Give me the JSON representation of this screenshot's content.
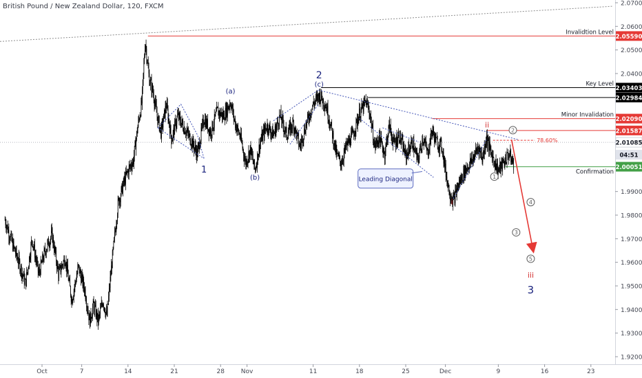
{
  "chart_title": "British Pound / New Zealand Dollar, 120, FXCM",
  "colors": {
    "candle": "#000000",
    "red_line": "#e53935",
    "black_line": "#000000",
    "green_line": "#43a047",
    "blue_label": "#1a237e",
    "dotted_blue": "#3f51b5",
    "red_label": "#d32f2f",
    "grey_label": "#616161",
    "axis_text": "#434651",
    "trendline": "#8c8c8c"
  },
  "chart_data": {
    "type": "candlestick",
    "ylim": [
      1.92,
      2.07
    ],
    "y_tick_labels": [
      "2.07000",
      "2.06000",
      "2.05000",
      "2.04000",
      "2.03000",
      "2.02000",
      "2.01000",
      "2.00000",
      "1.99000",
      "1.98000",
      "1.97000",
      "1.96000",
      "1.95000",
      "1.94000",
      "1.93000",
      "1.92000"
    ],
    "x_tick_labels": [
      {
        "label": "Oct",
        "day": 0
      },
      {
        "label": "7",
        "day": 6
      },
      {
        "label": "14",
        "day": 13
      },
      {
        "label": "21",
        "day": 20
      },
      {
        "label": "28",
        "day": 27
      },
      {
        "label": "Nov",
        "day": 31
      },
      {
        "label": "11",
        "day": 41
      },
      {
        "label": "18",
        "day": 48
      },
      {
        "label": "25",
        "day": 55
      },
      {
        "label": "Dec",
        "day": 61
      },
      {
        "label": "9",
        "day": 69
      },
      {
        "label": "16",
        "day": 76
      },
      {
        "label": "23",
        "day": 83
      }
    ],
    "price_path": [
      [
        -5.6,
        1.978
      ],
      [
        -4.5,
        1.968
      ],
      [
        -3.5,
        1.96
      ],
      [
        -2.5,
        1.951
      ],
      [
        -1.5,
        1.97
      ],
      [
        -0.5,
        1.955
      ],
      [
        0.5,
        1.965
      ],
      [
        1.5,
        1.972
      ],
      [
        2.5,
        1.955
      ],
      [
        3.5,
        1.962
      ],
      [
        4.5,
        1.944
      ],
      [
        5.5,
        1.958
      ],
      [
        6.5,
        1.948
      ],
      [
        7.2,
        1.935
      ],
      [
        7.8,
        1.942
      ],
      [
        8.5,
        1.935
      ],
      [
        9.2,
        1.944
      ],
      [
        9.8,
        1.937
      ],
      [
        10.5,
        1.958
      ],
      [
        11.5,
        1.985
      ],
      [
        12.5,
        1.995
      ],
      [
        13.2,
        2.0
      ],
      [
        13.8,
        2.003
      ],
      [
        14.5,
        2.018
      ],
      [
        15.1,
        2.028
      ],
      [
        15.6,
        2.054
      ],
      [
        16.2,
        2.038
      ],
      [
        16.8,
        2.032
      ],
      [
        17.4,
        2.022
      ],
      [
        18.0,
        2.015
      ],
      [
        18.8,
        2.027
      ],
      [
        19.6,
        2.012
      ],
      [
        20.5,
        2.022
      ],
      [
        21.5,
        2.017
      ],
      [
        22.5,
        2.012
      ],
      [
        23.5,
        2.006
      ],
      [
        24.5,
        2.021
      ],
      [
        25.5,
        2.015
      ],
      [
        26.5,
        2.024
      ],
      [
        27.5,
        2.022
      ],
      [
        28.5,
        2.028
      ],
      [
        29.2,
        2.019
      ],
      [
        30.0,
        2.013
      ],
      [
        30.8,
        2.002
      ],
      [
        31.5,
        2.008
      ],
      [
        32.2,
        1.999
      ],
      [
        33.0,
        2.011
      ],
      [
        34.0,
        2.018
      ],
      [
        35.0,
        2.014
      ],
      [
        36.0,
        2.022
      ],
      [
        37.0,
        2.014
      ],
      [
        38.0,
        2.019
      ],
      [
        39.0,
        2.009
      ],
      [
        40.0,
        2.019
      ],
      [
        41.0,
        2.027
      ],
      [
        42.0,
        2.031
      ],
      [
        43.0,
        2.026
      ],
      [
        43.8,
        2.016
      ],
      [
        44.5,
        2.006
      ],
      [
        45.2,
        2.002
      ],
      [
        46.0,
        2.009
      ],
      [
        47.0,
        2.014
      ],
      [
        48.0,
        2.023
      ],
      [
        49.0,
        2.028
      ],
      [
        49.6,
        2.023
      ],
      [
        50.3,
        2.009
      ],
      [
        51.0,
        2.013
      ],
      [
        51.8,
        2.006
      ],
      [
        52.5,
        2.018
      ],
      [
        53.2,
        2.01
      ],
      [
        54.0,
        2.014
      ],
      [
        55.0,
        2.005
      ],
      [
        56.0,
        2.011
      ],
      [
        56.8,
        2.003
      ],
      [
        57.6,
        2.013
      ],
      [
        58.3,
        2.006
      ],
      [
        59.0,
        2.016
      ],
      [
        59.6,
        2.011
      ],
      [
        60.5,
        2.009
      ],
      [
        61.0,
        1.999
      ],
      [
        61.6,
        1.99
      ],
      [
        62.2,
        1.986
      ],
      [
        63.0,
        1.993
      ],
      [
        64.0,
        1.999
      ],
      [
        65.0,
        2.003
      ],
      [
        66.0,
        2.009
      ],
      [
        66.6,
        2.004
      ],
      [
        67.2,
        2.013
      ],
      [
        67.8,
        2.007
      ],
      [
        68.4,
        2.003
      ],
      [
        69.0,
        1.999
      ],
      [
        69.8,
        2.002
      ],
      [
        70.6,
        2.006
      ],
      [
        71.4,
        2.001
      ]
    ],
    "horizontal_levels": [
      {
        "name": "Invalidtion Level",
        "value": "2.05590",
        "color": "red"
      },
      {
        "name": "Key Level",
        "value": "2.03403",
        "color": "black"
      },
      {
        "name": "",
        "value": "2.02984",
        "color": "black"
      },
      {
        "name": "Minor Invalidation",
        "value": "2.02090",
        "color": "red"
      },
      {
        "name": "",
        "value": "2.01587",
        "color": "red"
      },
      {
        "name": "",
        "value": "2.01085",
        "color": "current"
      },
      {
        "name": "Confirmation",
        "value": "2.00051",
        "color": "green"
      }
    ],
    "price_axis_labels": [
      "2.05590",
      "2.03403",
      "2.02984",
      "2.02090",
      "2.01587",
      "2.01085",
      "04:51",
      "2.00051"
    ],
    "fib_label": "78.60%",
    "annotations": {
      "blue": [
        "2",
        "(c)",
        "(a)",
        "(b)",
        "1",
        "3"
      ],
      "red": [
        "ii",
        "i",
        "iii"
      ],
      "circled": [
        "2",
        "1",
        "4",
        "3",
        "5"
      ],
      "callout": "Leading Diagonal"
    }
  }
}
